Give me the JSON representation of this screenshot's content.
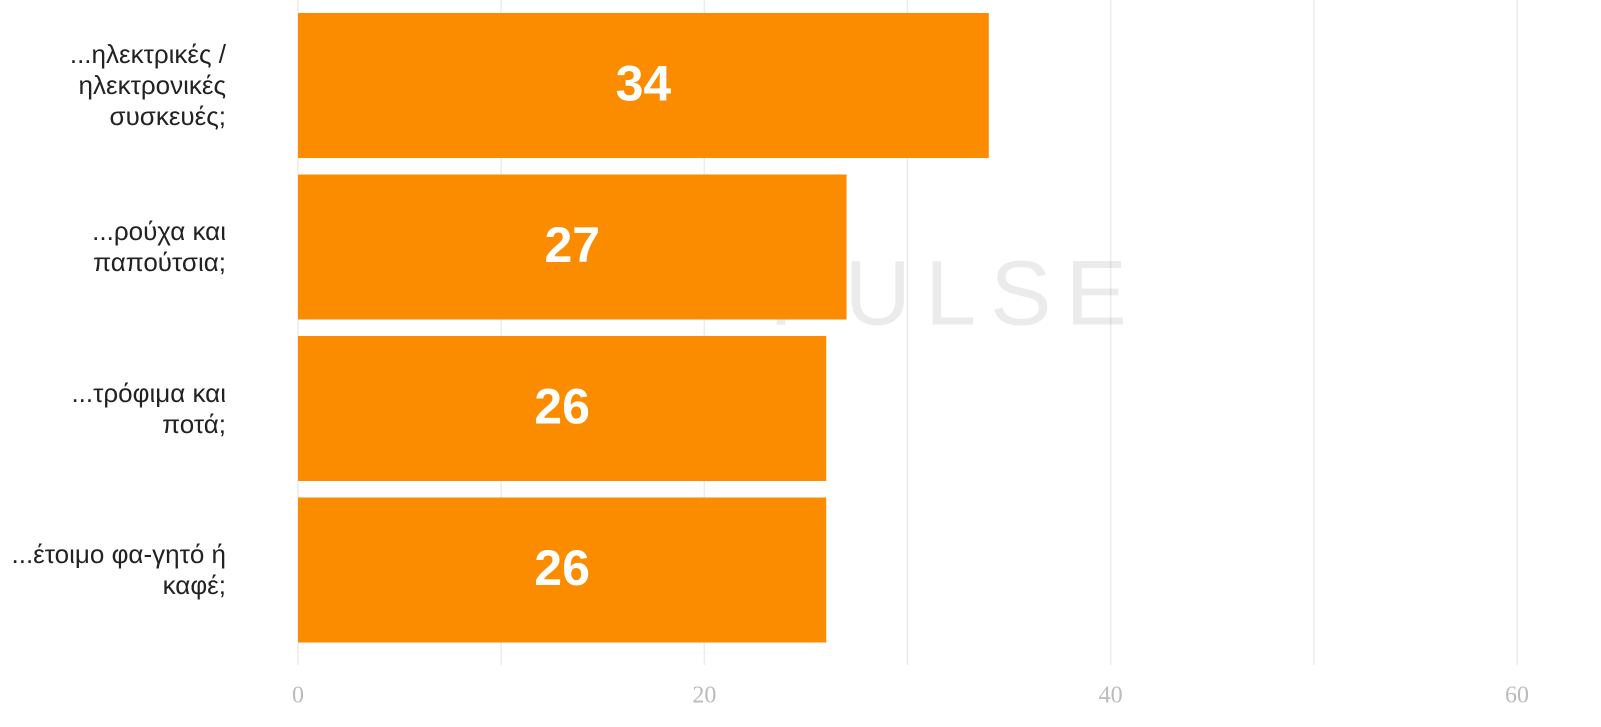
{
  "chart_data": {
    "type": "barh",
    "categories": [
      "...ηλεκτρικές / ηλεκτρονικές συσκευές;",
      "...ρούχα και παπούτσια;",
      "...τρόφιμα και ποτά;",
      "...έτοιμο φα-γητό ή καφέ;"
    ],
    "values": [
      34,
      27,
      26,
      26
    ],
    "color": "#fb8c00",
    "xlim": [
      0,
      60
    ],
    "xticks": [
      0,
      20,
      40,
      60
    ],
    "grid": true,
    "minor_grid": [
      10,
      30,
      50
    ],
    "watermark": "PULSE"
  }
}
